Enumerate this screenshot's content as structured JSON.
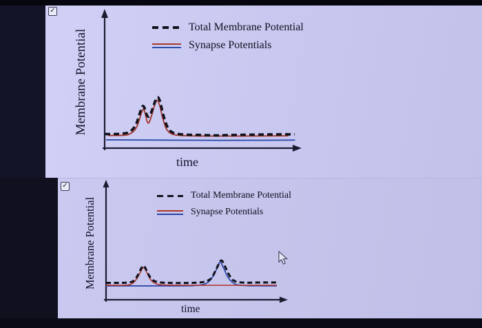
{
  "ui": {
    "checkbox_glyph": "✓",
    "background_color": "#c7c6ee",
    "bezel_color": "#0a0a16",
    "text_color": "#13132b"
  },
  "chart_data": [
    {
      "type": "line",
      "title": "",
      "xlabel": "time",
      "ylabel": "Membrane Potential",
      "x_range": [
        0,
        1
      ],
      "y_range": [
        0,
        1
      ],
      "ticks": {
        "x": [],
        "y": []
      },
      "grid": false,
      "legend_position": "top-inside",
      "checkbox_checked": true,
      "legend": [
        {
          "label": "Total Membrane Potential",
          "line": "dashed",
          "color": "#12121c"
        },
        {
          "label": "Synapse Potentials",
          "line": "solid",
          "colors": [
            "#a5392e",
            "#2d4dab"
          ]
        }
      ],
      "series": [
        {
          "name": "Synapse Potential (blue)",
          "color": "#2d4dab",
          "width": 1.9,
          "points": [
            [
              0.01,
              0.062
            ],
            [
              0.3,
              0.06
            ],
            [
              0.6,
              0.058
            ],
            [
              0.985,
              0.06
            ]
          ]
        },
        {
          "name": "Synapse Potential (red)",
          "color": "#a5392e",
          "width": 1.9,
          "points": [
            [
              0.02,
              0.095
            ],
            [
              0.08,
              0.095
            ],
            [
              0.12,
              0.1
            ],
            [
              0.15,
              0.125
            ],
            [
              0.17,
              0.17
            ],
            [
              0.188,
              0.25
            ],
            [
              0.2,
              0.29
            ],
            [
              0.21,
              0.26
            ],
            [
              0.22,
              0.2
            ],
            [
              0.23,
              0.19
            ],
            [
              0.245,
              0.25
            ],
            [
              0.26,
              0.325
            ],
            [
              0.273,
              0.355
            ],
            [
              0.287,
              0.31
            ],
            [
              0.3,
              0.23
            ],
            [
              0.318,
              0.15
            ],
            [
              0.34,
              0.112
            ],
            [
              0.37,
              0.098
            ],
            [
              0.42,
              0.093
            ],
            [
              0.55,
              0.09
            ],
            [
              0.7,
              0.09
            ],
            [
              0.95,
              0.092
            ]
          ]
        },
        {
          "name": "Total Membrane Potential",
          "color": "#12121c",
          "width": 3.6,
          "dash": [
            8,
            5
          ],
          "points": [
            [
              0.0,
              0.105
            ],
            [
              0.05,
              0.105
            ],
            [
              0.09,
              0.108
            ],
            [
              0.12,
              0.115
            ],
            [
              0.145,
              0.14
            ],
            [
              0.165,
              0.185
            ],
            [
              0.182,
              0.26
            ],
            [
              0.195,
              0.31
            ],
            [
              0.205,
              0.305
            ],
            [
              0.215,
              0.26
            ],
            [
              0.225,
              0.235
            ],
            [
              0.235,
              0.245
            ],
            [
              0.25,
              0.3
            ],
            [
              0.262,
              0.35
            ],
            [
              0.275,
              0.38
            ],
            [
              0.288,
              0.345
            ],
            [
              0.3,
              0.27
            ],
            [
              0.315,
              0.195
            ],
            [
              0.333,
              0.14
            ],
            [
              0.355,
              0.115
            ],
            [
              0.385,
              0.105
            ],
            [
              0.43,
              0.1
            ],
            [
              0.5,
              0.098
            ],
            [
              0.58,
              0.095
            ],
            [
              0.66,
              0.098
            ],
            [
              0.75,
              0.1
            ],
            [
              0.85,
              0.102
            ],
            [
              0.985,
              0.103
            ]
          ]
        }
      ]
    },
    {
      "type": "line",
      "title": "",
      "xlabel": "time",
      "ylabel": "Membrane Potential",
      "x_range": [
        0,
        1
      ],
      "y_range": [
        0,
        1
      ],
      "ticks": {
        "x": [],
        "y": []
      },
      "grid": false,
      "legend_position": "top-inside",
      "checkbox_checked": true,
      "legend": [
        {
          "label": "Total Membrane Potential",
          "line": "dashed",
          "color": "#12121c"
        },
        {
          "label": "Synapse Potentials",
          "line": "solid",
          "colors": [
            "#b03227",
            "#2743a6"
          ]
        }
      ],
      "series": [
        {
          "name": "Synapse Potential (blue)",
          "color": "#2743a6",
          "width": 1.7,
          "points": [
            [
              0.0,
              0.122
            ],
            [
              0.2,
              0.122
            ],
            [
              0.35,
              0.122
            ],
            [
              0.5,
              0.124
            ],
            [
              0.565,
              0.14
            ],
            [
              0.6,
              0.185
            ],
            [
              0.63,
              0.27
            ],
            [
              0.648,
              0.33
            ],
            [
              0.668,
              0.285
            ],
            [
              0.69,
              0.21
            ],
            [
              0.715,
              0.16
            ],
            [
              0.745,
              0.132
            ],
            [
              0.8,
              0.124
            ],
            [
              0.9,
              0.122
            ],
            [
              0.97,
              0.122
            ]
          ]
        },
        {
          "name": "Synapse Potential (red)",
          "color": "#b03227",
          "width": 1.6,
          "points": [
            [
              0.0,
              0.128
            ],
            [
              0.1,
              0.128
            ],
            [
              0.145,
              0.138
            ],
            [
              0.175,
              0.185
            ],
            [
              0.2,
              0.255
            ],
            [
              0.215,
              0.285
            ],
            [
              0.232,
              0.24
            ],
            [
              0.255,
              0.175
            ],
            [
              0.285,
              0.14
            ],
            [
              0.33,
              0.13
            ],
            [
              0.45,
              0.127
            ],
            [
              0.6,
              0.127
            ],
            [
              0.75,
              0.127
            ],
            [
              0.97,
              0.127
            ]
          ]
        },
        {
          "name": "Total Membrane Potential",
          "color": "#12121c",
          "width": 3.1,
          "dash": [
            7,
            4.5
          ],
          "points": [
            [
              0.0,
              0.148
            ],
            [
              0.06,
              0.148
            ],
            [
              0.11,
              0.15
            ],
            [
              0.15,
              0.16
            ],
            [
              0.175,
              0.2
            ],
            [
              0.195,
              0.26
            ],
            [
              0.213,
              0.3
            ],
            [
              0.23,
              0.26
            ],
            [
              0.25,
              0.2
            ],
            [
              0.275,
              0.165
            ],
            [
              0.31,
              0.152
            ],
            [
              0.37,
              0.148
            ],
            [
              0.44,
              0.147
            ],
            [
              0.51,
              0.15
            ],
            [
              0.56,
              0.158
            ],
            [
              0.6,
              0.19
            ],
            [
              0.628,
              0.27
            ],
            [
              0.655,
              0.345
            ],
            [
              0.675,
              0.3
            ],
            [
              0.7,
              0.22
            ],
            [
              0.725,
              0.17
            ],
            [
              0.755,
              0.155
            ],
            [
              0.8,
              0.15
            ],
            [
              0.88,
              0.152
            ],
            [
              0.98,
              0.152
            ]
          ]
        }
      ]
    }
  ]
}
